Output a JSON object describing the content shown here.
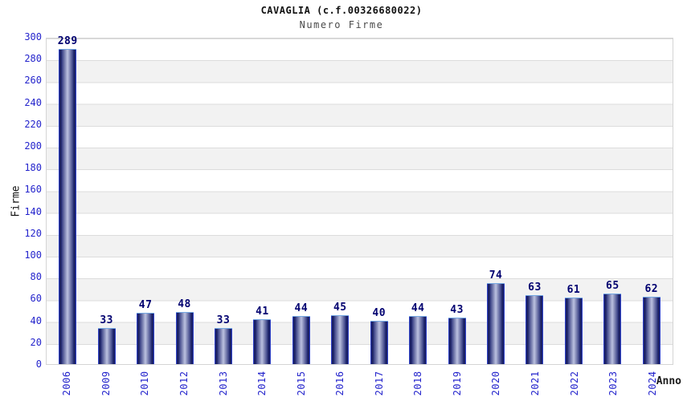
{
  "title": "CAVAGLIA (c.f.00326680022)",
  "subtitle": "Numero Firme",
  "chart_data": {
    "type": "bar",
    "title": "CAVAGLIA (c.f.00326680022)",
    "subtitle": "Numero Firme",
    "categories": [
      "2006",
      "2009",
      "2010",
      "2012",
      "2013",
      "2014",
      "2015",
      "2016",
      "2017",
      "2018",
      "2019",
      "2020",
      "2021",
      "2022",
      "2023",
      "2024"
    ],
    "values": [
      289,
      33,
      47,
      48,
      33,
      41,
      44,
      45,
      40,
      44,
      43,
      74,
      63,
      61,
      65,
      62
    ],
    "xlabel": "Anno",
    "ylabel": "Firme",
    "ylim": [
      0,
      300
    ],
    "ytick_step": 20,
    "grid": true,
    "legend": "none",
    "colors": {
      "axis_label": "#2424cc",
      "value_label": "#000070",
      "bar_outline": "#2e41c8",
      "bar_dark": "#1b2166",
      "bar_mid": "#3d4487",
      "bar_soft": "#9aa0c7",
      "bar_light": "#bcc2e0",
      "bar_top_highlight": "#74a7e2",
      "band": "#f2f2f2",
      "gridline": "#dcdcdc",
      "plot_border": "#d4d4d4"
    }
  }
}
